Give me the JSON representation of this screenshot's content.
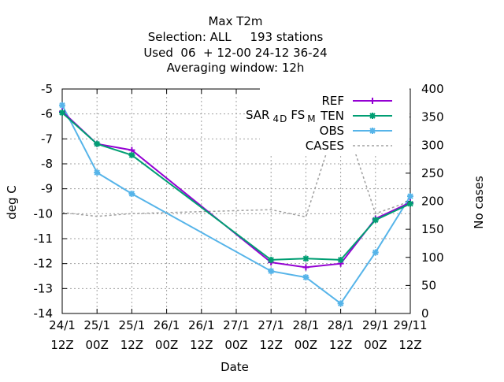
{
  "chart_data": {
    "type": "line",
    "title_lines": [
      "Max T2m",
      "Selection: ALL     193 stations",
      "Used  06  + 12-00 24-12 36-24",
      "Averaging window: 12h"
    ],
    "xlabel": "Date",
    "ylabel": "deg C",
    "y2label": "No cases",
    "x_ticks": [
      {
        "l1": "24/1",
        "l2": "12Z"
      },
      {
        "l1": "25/1",
        "l2": "00Z"
      },
      {
        "l1": "25/1",
        "l2": "12Z"
      },
      {
        "l1": "26/1",
        "l2": "00Z"
      },
      {
        "l1": "26/1",
        "l2": "12Z"
      },
      {
        "l1": "27/1",
        "l2": "00Z"
      },
      {
        "l1": "27/1",
        "l2": "12Z"
      },
      {
        "l1": "28/1",
        "l2": "00Z"
      },
      {
        "l1": "28/1",
        "l2": "12Z"
      },
      {
        "l1": "29/1",
        "l2": "00Z"
      },
      {
        "l1": "29/11",
        "l2": "12Z"
      }
    ],
    "ylim": [
      -14,
      -5
    ],
    "y_ticks": [
      -5,
      -6,
      -7,
      -8,
      -9,
      -10,
      -11,
      -12,
      -13,
      -14
    ],
    "y2lim": [
      0,
      400
    ],
    "y2_ticks": [
      400,
      350,
      300,
      250,
      200,
      150,
      100,
      50,
      0
    ],
    "grid": true,
    "legend_position": "top-right",
    "legend_header": "SAR 4D FS M",
    "series": [
      {
        "name": "REF",
        "color": "#9400d3",
        "marker": "plus",
        "x": [
          0,
          1,
          2,
          6,
          7,
          8,
          9,
          10
        ],
        "y": [
          -5.9,
          -7.2,
          -7.45,
          -11.95,
          -12.15,
          -12.0,
          -10.2,
          -9.55
        ]
      },
      {
        "name": "TEN",
        "color": "#009e73",
        "marker": "star",
        "x": [
          0,
          1,
          2,
          6,
          7,
          8,
          9,
          10
        ],
        "y": [
          -5.95,
          -7.2,
          -7.65,
          -11.85,
          -11.8,
          -11.85,
          -10.25,
          -9.6
        ]
      },
      {
        "name": "OBS",
        "color": "#56b4e9",
        "marker": "star",
        "x": [
          0,
          1,
          2,
          6,
          7,
          8,
          9,
          10
        ],
        "y": [
          -5.65,
          -8.35,
          -9.2,
          -12.3,
          -12.55,
          -13.6,
          -11.55,
          -9.3
        ]
      },
      {
        "name": "CASES",
        "color": "#a0a0a0",
        "marker": "none",
        "axis": "y2",
        "dashed": true,
        "x": [
          0,
          1,
          2,
          6,
          7,
          8,
          9,
          10
        ],
        "y": [
          180,
          173,
          178,
          185,
          172,
          365,
          178,
          200
        ]
      }
    ]
  }
}
